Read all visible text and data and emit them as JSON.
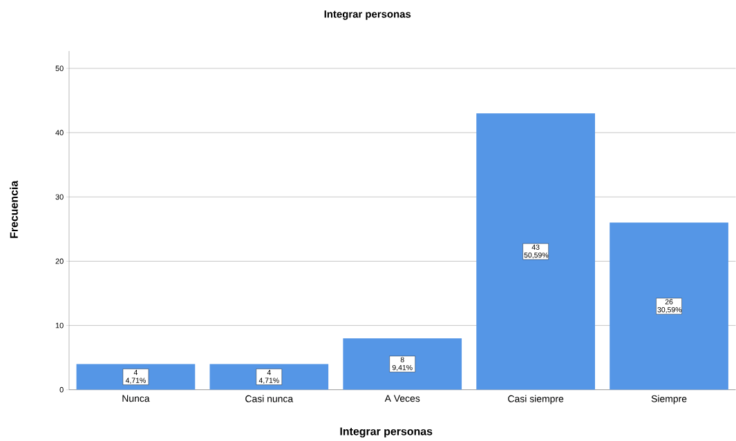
{
  "chart_data": {
    "type": "bar",
    "title": "Integrar personas",
    "xlabel": "Integrar personas",
    "ylabel": "Frecuencia",
    "categories": [
      "Nunca",
      "Casi nunca",
      "A Veces",
      "Casi siempre",
      "Siempre"
    ],
    "values": [
      4,
      4,
      8,
      43,
      26
    ],
    "value_labels": [
      "4 4,71%",
      "4 4,71%",
      "8 9,41%",
      "43 50,59%",
      "26 30,59%"
    ],
    "color": "#5596e6",
    "ylim": [
      0,
      52.7
    ],
    "yticks": [
      0,
      10,
      20,
      30,
      40,
      50
    ],
    "grid": "y"
  }
}
